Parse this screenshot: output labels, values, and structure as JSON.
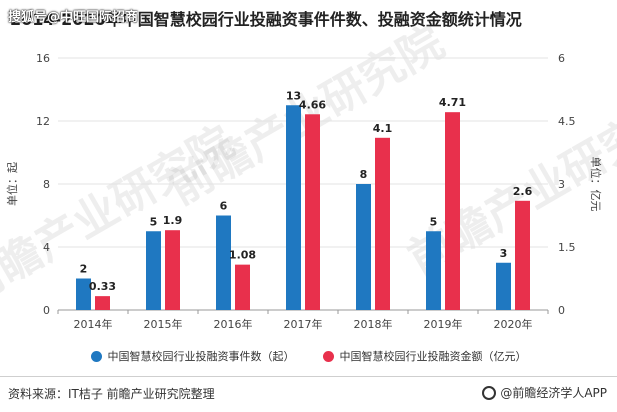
{
  "watermark_top": "搜狐号@中旺国际招商",
  "title": "2014-2020年中国智慧校园行业投融资事件件数、投融资金额统计情况",
  "legend": {
    "count": "中国智慧校园行业投融资事件数（起）",
    "amount": "中国智慧校园行业投融资金额（亿元）"
  },
  "footer": {
    "source": "资料来源：IT桔子 前瞻产业研究院整理",
    "brand": "@前瞻经济学人APP"
  },
  "watermarks": [
    "前瞻产业研究院",
    "前瞻产业研究院",
    "前瞻产业研究院"
  ],
  "colors": {
    "count": "#1f78c1",
    "amount": "#e8304c"
  },
  "chart_data": {
    "type": "bar",
    "categories": [
      "2014年",
      "2015年",
      "2016年",
      "2017年",
      "2018年",
      "2019年",
      "2020年"
    ],
    "series": [
      {
        "name": "中国智慧校园行业投融资事件数（起）",
        "axis": "left",
        "values": [
          2,
          5,
          6,
          13,
          8,
          5,
          3
        ],
        "labels": [
          "2",
          "5",
          "6",
          "13",
          "8",
          "5",
          "3"
        ]
      },
      {
        "name": "中国智慧校园行业投融资金额（亿元）",
        "axis": "right",
        "values": [
          0.33,
          1.9,
          1.08,
          4.66,
          4.1,
          4.71,
          2.6
        ],
        "labels": [
          "0.33",
          "1.9",
          "1.08",
          "4.66",
          "4.1",
          "4.71",
          "2.6"
        ]
      }
    ],
    "ylabel": "单位：起",
    "y2label": "单位：亿元",
    "ylim": [
      0,
      16
    ],
    "y2lim": [
      0,
      6
    ],
    "yticks": [
      "0",
      "4",
      "8",
      "12",
      "16"
    ],
    "y2ticks": [
      "0",
      "1.5",
      "3",
      "4.5",
      "6"
    ],
    "grid": true,
    "legend_position": "bottom"
  }
}
